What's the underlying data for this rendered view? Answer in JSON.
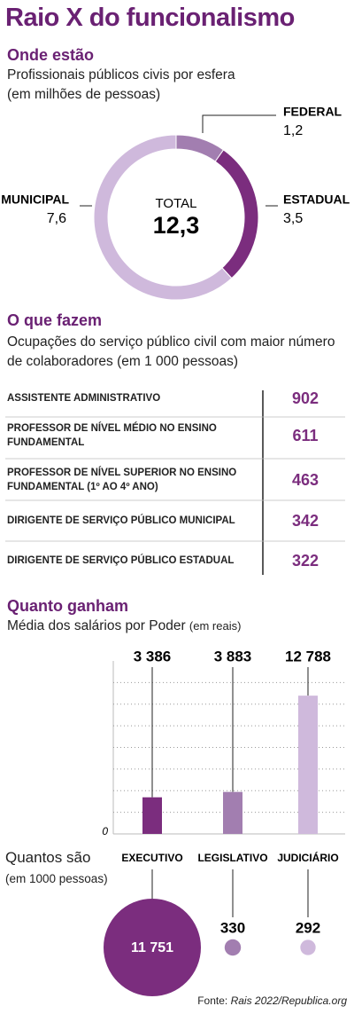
{
  "title": "Raio X do funcionalismo",
  "chart_data": [
    {
      "type": "donut",
      "title": "Onde estão",
      "subtitle": "Profissionais públicos civis por esfera",
      "unit": "(em milhões de pessoas)",
      "categories": [
        "FEDERAL",
        "ESTADUAL",
        "MUNICIPAL"
      ],
      "values": [
        1.2,
        3.5,
        7.6
      ],
      "value_labels": [
        "1,2",
        "3,5",
        "7,6"
      ],
      "colors": [
        "#a27eb0",
        "#7b2d7e",
        "#cfb9dc"
      ],
      "center_label": "TOTAL",
      "center_value": 12.3,
      "center_value_label": "12,3"
    },
    {
      "type": "table",
      "title": "O que fazem",
      "subtitle": "Ocupações do serviço público civil com maior número de colaboradores (em 1 000 pessoas)",
      "categories": [
        "ASSISTENTE ADMINISTRATIVO",
        "PROFESSOR DE NÍVEL MÉDIO NO ENSINO FUNDAMENTAL",
        "PROFESSOR DE NÍVEL SUPERIOR NO ENSINO FUNDAMENTAL (1º AO 4º ANO)",
        "DIRIGENTE DE SERVIÇO PÚBLICO MUNICIPAL",
        "DIRIGENTE DE SERVIÇO PÚBLICO ESTADUAL"
      ],
      "values": [
        902,
        611,
        463,
        342,
        322
      ],
      "color": "#7b2d7e"
    },
    {
      "type": "bar",
      "title": "Quanto ganham",
      "subtitle": "Média dos salários por Poder",
      "unit": "(em reais)",
      "categories": [
        "EXECUTIVO",
        "LEGISLATIVO",
        "JUDICIÁRIO"
      ],
      "values": [
        3386,
        3883,
        12788
      ],
      "value_labels": [
        "3 386",
        "3 883",
        "12 788"
      ],
      "colors": [
        "#7b2d7e",
        "#a27eb0",
        "#cfb9dc"
      ],
      "ylim": [
        0,
        16000
      ],
      "yticks": [
        0
      ],
      "minor_yticks": [
        2000,
        4000,
        6000,
        8000,
        10000,
        12000,
        14000
      ],
      "grid": "dotted"
    },
    {
      "type": "bubble",
      "title": "Quantos são",
      "subtitle": "(em 1000 pessoas)",
      "values": [
        11751,
        330,
        292
      ],
      "value_labels": [
        "11 751",
        "330",
        "292"
      ],
      "colors": [
        "#7b2d7e",
        "#a27eb0",
        "#cfb9dc"
      ]
    }
  ],
  "source": {
    "prefix": "Fonte:",
    "text": "Rais 2022/Republica.org"
  }
}
